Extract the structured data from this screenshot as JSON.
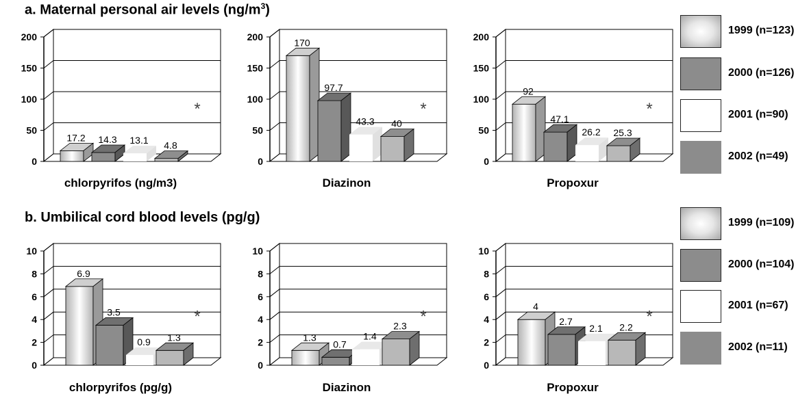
{
  "sections": [
    {
      "title": "a. Maternal personal air levels (ng/m",
      "title_sup": "3",
      "title_tail": ")",
      "legend": [
        "1999 (n=123)",
        "2000 (n=126)",
        "2001 (n=90)",
        "2002 (n=49)"
      ]
    },
    {
      "title": "b. Umbilical cord blood levels (pg/g)",
      "title_sup": "",
      "title_tail": "",
      "legend": [
        "1999 (n=109)",
        "2000 (n=104)",
        "2001 (n=67)",
        "2002 (n=11)"
      ]
    }
  ],
  "colors": {
    "y1999": "#d6d6d6",
    "y2000": "#8c8c8c",
    "y2001": "#ffffff",
    "y2002": "#b8b8b8"
  },
  "chart_data": [
    {
      "type": "bar",
      "xlabel": "chlorpyrifos (ng/m3)",
      "ylim": [
        0,
        200
      ],
      "yticks": [
        0,
        50,
        100,
        150,
        200
      ],
      "series": [
        {
          "name": "1999 (n=123)",
          "value": 17.2,
          "label": "17.2"
        },
        {
          "name": "2000 (n=126)",
          "value": 14.3,
          "label": "14.3"
        },
        {
          "name": "2001 (n=90)",
          "value": 13.1,
          "label": "13.1"
        },
        {
          "name": "2002 (n=49)",
          "value": 4.8,
          "label": "4.8"
        }
      ],
      "annotation": "*"
    },
    {
      "type": "bar",
      "xlabel": "Diazinon",
      "ylim": [
        0,
        200
      ],
      "yticks": [
        0,
        50,
        100,
        150,
        200
      ],
      "series": [
        {
          "name": "1999 (n=123)",
          "value": 170,
          "label": "170"
        },
        {
          "name": "2000 (n=126)",
          "value": 97.7,
          "label": "97.7"
        },
        {
          "name": "2001 (n=90)",
          "value": 43.3,
          "label": "43.3"
        },
        {
          "name": "2002 (n=49)",
          "value": 40,
          "label": "40"
        }
      ],
      "annotation": "*"
    },
    {
      "type": "bar",
      "xlabel": "Propoxur",
      "ylim": [
        0,
        200
      ],
      "yticks": [
        0,
        50,
        100,
        150,
        200
      ],
      "series": [
        {
          "name": "1999 (n=123)",
          "value": 92,
          "label": "92"
        },
        {
          "name": "2000 (n=126)",
          "value": 47.1,
          "label": "47.1"
        },
        {
          "name": "2001 (n=90)",
          "value": 26.2,
          "label": "26.2"
        },
        {
          "name": "2002 (n=49)",
          "value": 25.3,
          "label": "25.3"
        }
      ],
      "annotation": "*"
    },
    {
      "type": "bar",
      "xlabel": "chlorpyrifos (pg/g)",
      "ylim": [
        0,
        10
      ],
      "yticks": [
        0,
        2,
        4,
        6,
        8,
        10
      ],
      "series": [
        {
          "name": "1999 (n=109)",
          "value": 6.9,
          "label": "6.9"
        },
        {
          "name": "2000 (n=104)",
          "value": 3.5,
          "label": "3.5"
        },
        {
          "name": "2001 (n=67)",
          "value": 0.9,
          "label": "0.9"
        },
        {
          "name": "2002 (n=11)",
          "value": 1.3,
          "label": "1.3"
        }
      ],
      "annotation": "*"
    },
    {
      "type": "bar",
      "xlabel": "Diazinon",
      "ylim": [
        0,
        10
      ],
      "yticks": [
        0,
        2,
        4,
        6,
        8,
        10
      ],
      "series": [
        {
          "name": "1999 (n=109)",
          "value": 1.3,
          "label": "1.3"
        },
        {
          "name": "2000 (n=104)",
          "value": 0.7,
          "label": "0.7"
        },
        {
          "name": "2001 (n=67)",
          "value": 1.4,
          "label": "1.4"
        },
        {
          "name": "2002 (n=11)",
          "value": 2.3,
          "label": "2.3"
        }
      ],
      "annotation": "*"
    },
    {
      "type": "bar",
      "xlabel": "Propoxur",
      "ylim": [
        0,
        10
      ],
      "yticks": [
        0,
        2,
        4,
        6,
        8,
        10
      ],
      "series": [
        {
          "name": "1999 (n=109)",
          "value": 4,
          "label": "4"
        },
        {
          "name": "2000 (n=104)",
          "value": 2.7,
          "label": "2.7"
        },
        {
          "name": "2001 (n=67)",
          "value": 2.1,
          "label": "2.1"
        },
        {
          "name": "2002 (n=11)",
          "value": 2.2,
          "label": "2.2"
        }
      ],
      "annotation": "*"
    }
  ]
}
